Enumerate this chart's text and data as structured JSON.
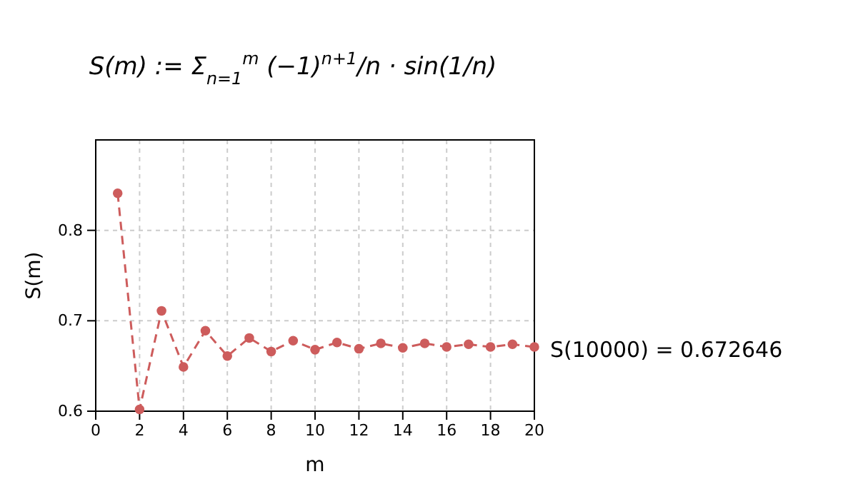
{
  "chart_data": {
    "type": "line",
    "title": "S(m) := Σ$_{n=1}$$^{m}$ (−1)$^{n+1}$/n · sin(1/n)",
    "xlabel": "m",
    "ylabel": "S(m)",
    "x": [
      1,
      2,
      3,
      4,
      5,
      6,
      7,
      8,
      9,
      10,
      11,
      12,
      13,
      14,
      15,
      16,
      17,
      18,
      19,
      20
    ],
    "series": [
      {
        "color": "#cd5c5c",
        "values": [
          0.841,
          0.602,
          0.711,
          0.649,
          0.689,
          0.661,
          0.681,
          0.666,
          0.678,
          0.668,
          0.676,
          0.669,
          0.675,
          0.67,
          0.675,
          0.671,
          0.674,
          0.671,
          0.674,
          0.671
        ]
      }
    ],
    "xlim": [
      0,
      20
    ],
    "ylim": [
      0.6,
      0.9
    ],
    "xticks": [
      0,
      2,
      4,
      6,
      8,
      10,
      12,
      14,
      16,
      18,
      20
    ],
    "yticks": [
      0.6,
      0.7,
      0.8
    ],
    "grid": true,
    "marker": "circle",
    "line_style": "dashed",
    "annotations": [
      "S(10000) = 0.672646"
    ]
  }
}
